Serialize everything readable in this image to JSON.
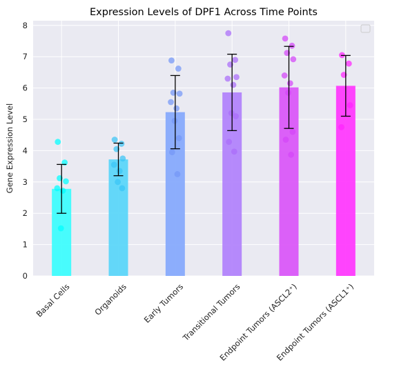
{
  "chart_data": {
    "type": "bar",
    "title": "Expression Levels of DPF1 Across Time Points",
    "xlabel": "",
    "ylabel": "Gene Expression Level",
    "ylim": [
      0,
      8.15
    ],
    "yticks": [
      0,
      1,
      2,
      3,
      4,
      5,
      6,
      7,
      8
    ],
    "grid": true,
    "legend": "top-right, empty",
    "categories": [
      "Basal Cells",
      "Organoids",
      "Early Tumors",
      "Transitional Tumors",
      "Endpoint Tumors (ASCL2⁺)",
      "Endpoint Tumors (ASCL1⁺)"
    ],
    "values": [
      2.78,
      3.72,
      5.23,
      5.86,
      6.02,
      6.07
    ],
    "error": [
      0.78,
      0.52,
      1.17,
      1.22,
      1.31,
      0.97
    ],
    "points": [
      [
        4.28,
        3.62,
        3.12,
        3.02,
        2.8,
        2.72,
        1.52
      ],
      [
        4.35,
        4.22,
        4.05,
        3.75,
        3.55,
        3.35,
        3.0,
        2.8
      ],
      [
        6.88,
        6.62,
        5.85,
        5.82,
        5.55,
        5.35,
        4.95,
        4.4,
        3.95,
        3.25
      ],
      [
        7.75,
        6.9,
        6.75,
        6.35,
        6.3,
        6.1,
        5.2,
        5.1,
        4.28,
        3.97
      ],
      [
        7.58,
        7.35,
        7.12,
        6.92,
        6.4,
        6.15,
        5.85,
        4.6,
        4.35,
        3.87
      ],
      [
        7.05,
        6.78,
        6.42,
        5.45,
        4.75
      ]
    ],
    "colors": [
      "#3ffdfd",
      "#5cd6f9",
      "#87aafc",
      "#b284fb",
      "#da58f8",
      "#ff3bfd"
    ],
    "point_colors": [
      "#00ffff",
      "#3ac5f5",
      "#7597f7",
      "#ab6cf9",
      "#d445f8",
      "#ff22fd"
    ]
  }
}
